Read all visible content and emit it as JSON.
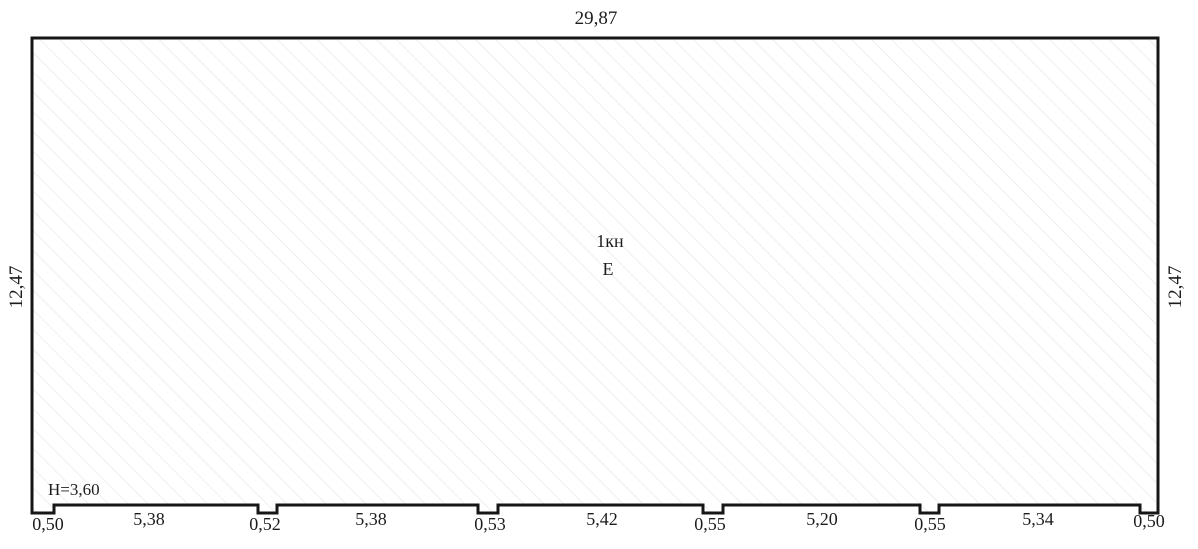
{
  "plan": {
    "top_length": "29,87",
    "left_height": "12,47",
    "right_height": "12,47",
    "room_code": "1кн",
    "room_letter": "Е",
    "ceiling_height": "H=3,60",
    "bottom_segments": [
      "0,50",
      "5,38",
      "0,52",
      "5,38",
      "0,53",
      "5,42",
      "0,55",
      "5,20",
      "0,55",
      "5,34",
      "0,50"
    ]
  },
  "colors": {
    "outline": "#161616",
    "hatch": "#e7e7e7",
    "text": "#1d1d1d"
  }
}
